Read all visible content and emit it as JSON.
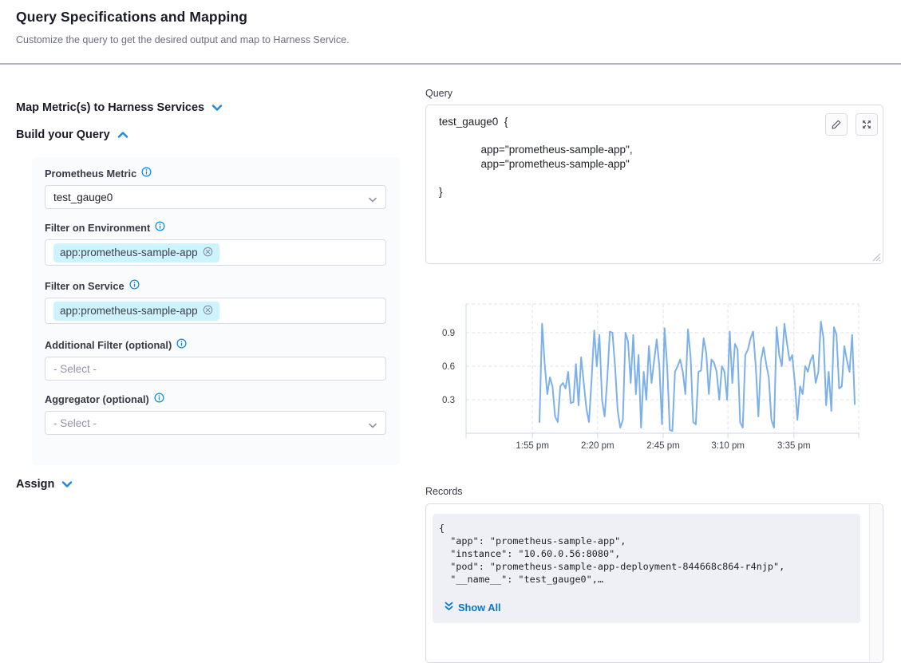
{
  "header": {
    "title": "Query Specifications and Mapping",
    "subtitle": "Customize the query to get the desired output and map to Harness Service."
  },
  "sections": {
    "map_metrics_label": "Map Metric(s) to Harness Services",
    "build_query_label": "Build your Query",
    "assign_label": "Assign"
  },
  "form": {
    "fields": [
      {
        "label": "Prometheus Metric",
        "value": "test_gauge0"
      },
      {
        "label": "Filter on Environment",
        "tag": "app:prometheus-sample-app"
      },
      {
        "label": "Filter on Service",
        "tag": "app:prometheus-sample-app"
      },
      {
        "label": "Additional Filter (optional)",
        "placeholder": "- Select -"
      },
      {
        "label": "Aggregator (optional)",
        "placeholder": "- Select -"
      }
    ]
  },
  "query_panel": {
    "label": "Query",
    "code": "test_gauge0  {\n\n              app=\"prometheus-sample-app\",\n              app=\"prometheus-sample-app\"\n\n}"
  },
  "records_panel": {
    "label": "Records",
    "code": "{\n  \"app\": \"prometheus-sample-app\",\n  \"instance\": \"10.60.0.56:8080\",\n  \"pod\": \"prometheus-sample-app-deployment-844668c864-r4njp\",\n  \"__name__\": \"test_gauge0\",…",
    "show_all_label": "Show All"
  },
  "colors": {
    "accent_blue": "#0278d5",
    "chevron_blue": "#1e88e5",
    "chip_background": "#cdf4fe",
    "chart_line": "#7cb0ea"
  },
  "chart_data": {
    "type": "line",
    "title": "",
    "xlabel": "",
    "ylabel": "",
    "x_tick_labels": [
      "1:55 pm",
      "2:20 pm",
      "2:45 pm",
      "3:10 pm",
      "3:35 pm"
    ],
    "y_ticks": [
      0.3,
      0.6,
      0.9
    ],
    "y_tick_labels": [
      "0.3",
      "0.6",
      "0.9"
    ],
    "ylim": [
      0,
      1.16
    ],
    "grid": "dashed",
    "legend": false,
    "line_color": "#7cb0ea",
    "values": [
      0.1,
      0.98,
      0.62,
      0.35,
      0.5,
      0.42,
      0.15,
      0.1,
      0.42,
      0.45,
      0.4,
      0.55,
      0.27,
      0.28,
      0.62,
      0.25,
      0.68,
      0.45,
      0.22,
      0.1,
      0.48,
      0.92,
      0.6,
      0.88,
      0.3,
      0.15,
      0.48,
      0.91,
      0.9,
      0.6,
      0.2,
      0.05,
      0.12,
      0.9,
      0.82,
      0.45,
      0.88,
      0.35,
      0.7,
      0.05,
      0.55,
      0.3,
      0.78,
      0.45,
      0.65,
      0.84,
      0.6,
      0.08,
      0.94,
      0.6,
      0.03,
      0.02,
      0.55,
      0.6,
      0.66,
      0.55,
      0.35,
      0.93,
      0.68,
      0.1,
      0.08,
      0.55,
      0.56,
      0.85,
      0.72,
      0.35,
      0.66,
      0.63,
      0.55,
      0.3,
      0.6,
      0.55,
      0.3,
      0.91,
      0.45,
      0.8,
      0.75,
      0.1,
      0.05,
      0.7,
      0.75,
      0.85,
      0.91,
      0.6,
      0.15,
      0.65,
      0.77,
      0.62,
      0.5,
      0.12,
      0.05,
      0.95,
      0.7,
      0.6,
      0.98,
      0.8,
      0.65,
      0.7,
      0.45,
      0.12,
      0.42,
      0.35,
      0.6,
      0.55,
      0.65,
      0.7,
      0.45,
      0.55,
      1.0,
      0.85,
      0.25,
      0.55,
      0.2,
      0.95,
      0.88,
      0.4,
      0.42,
      0.78,
      0.65,
      0.55,
      0.88,
      0.26
    ]
  }
}
